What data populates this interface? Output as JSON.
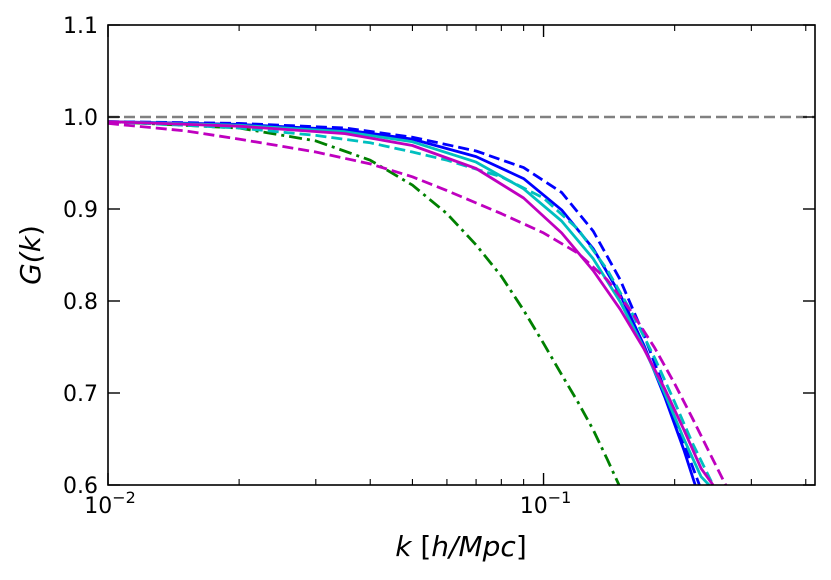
{
  "chart_data": {
    "type": "line",
    "title": "",
    "xlabel_parts": [
      "k",
      " [",
      "h/Mpc",
      "]"
    ],
    "ylabel_parts": [
      "G(",
      "k",
      ")"
    ],
    "xscale": "log",
    "xlim": [
      0.01,
      0.42
    ],
    "ylim": [
      0.6,
      1.1
    ],
    "grid": false,
    "legend": "none",
    "x_major_ticks": [
      {
        "value": 0.01,
        "label_base": "10",
        "label_exp": "−2"
      },
      {
        "value": 0.1,
        "label_base": "10",
        "label_exp": "−1"
      }
    ],
    "x_minor_ticks": [
      0.02,
      0.03,
      0.04,
      0.05,
      0.06,
      0.07,
      0.08,
      0.09,
      0.2,
      0.3,
      0.4
    ],
    "y_ticks": [
      {
        "value": 0.6,
        "label": "0.6"
      },
      {
        "value": 0.7,
        "label": "0.7"
      },
      {
        "value": 0.8,
        "label": "0.8"
      },
      {
        "value": 0.9,
        "label": "0.9"
      },
      {
        "value": 1.0,
        "label": "1.0"
      },
      {
        "value": 1.1,
        "label": "1.1"
      }
    ],
    "series": [
      {
        "color": "#808080",
        "style": "dashed",
        "x": [
          0.01,
          0.42
        ],
        "y": [
          1.0,
          1.0
        ]
      },
      {
        "color": "#008000",
        "style": "dashdot",
        "x": [
          0.01,
          0.02,
          0.03,
          0.04,
          0.05,
          0.06,
          0.07,
          0.08,
          0.09,
          0.1,
          0.11,
          0.12,
          0.13,
          0.14,
          0.149
        ],
        "y": [
          0.995,
          0.988,
          0.974,
          0.953,
          0.926,
          0.895,
          0.861,
          0.827,
          0.79,
          0.754,
          0.72,
          0.69,
          0.66,
          0.628,
          0.6
        ]
      },
      {
        "color": "#0000ff",
        "style": "solid",
        "x": [
          0.01,
          0.02,
          0.035,
          0.05,
          0.07,
          0.09,
          0.11,
          0.13,
          0.15,
          0.17,
          0.19,
          0.21,
          0.223
        ],
        "y": [
          0.995,
          0.992,
          0.986,
          0.976,
          0.957,
          0.933,
          0.899,
          0.857,
          0.807,
          0.752,
          0.695,
          0.638,
          0.6
        ]
      },
      {
        "color": "#0000ff",
        "style": "dashed",
        "x": [
          0.01,
          0.02,
          0.035,
          0.05,
          0.07,
          0.09,
          0.11,
          0.13,
          0.15,
          0.17,
          0.19,
          0.21,
          0.228
        ],
        "y": [
          0.995,
          0.993,
          0.988,
          0.978,
          0.963,
          0.945,
          0.918,
          0.876,
          0.823,
          0.763,
          0.703,
          0.645,
          0.6
        ]
      },
      {
        "color": "#00bfbf",
        "style": "solid",
        "x": [
          0.01,
          0.02,
          0.035,
          0.05,
          0.07,
          0.09,
          0.11,
          0.13,
          0.15,
          0.17,
          0.19,
          0.21,
          0.23,
          0.24
        ],
        "y": [
          0.995,
          0.991,
          0.984,
          0.973,
          0.951,
          0.922,
          0.887,
          0.846,
          0.799,
          0.749,
          0.699,
          0.65,
          0.609,
          0.6
        ]
      },
      {
        "color": "#00bfbf",
        "style": "dashed",
        "x": [
          0.01,
          0.02,
          0.03,
          0.04,
          0.05,
          0.06,
          0.08,
          0.1,
          0.12,
          0.14,
          0.16,
          0.18,
          0.2,
          0.22,
          0.245
        ],
        "y": [
          0.995,
          0.988,
          0.98,
          0.972,
          0.962,
          0.953,
          0.935,
          0.912,
          0.878,
          0.834,
          0.786,
          0.738,
          0.69,
          0.645,
          0.6
        ]
      },
      {
        "color": "#bf00bf",
        "style": "solid",
        "x": [
          0.01,
          0.02,
          0.035,
          0.05,
          0.07,
          0.09,
          0.11,
          0.13,
          0.15,
          0.17,
          0.19,
          0.21,
          0.23,
          0.245
        ],
        "y": [
          0.995,
          0.99,
          0.982,
          0.969,
          0.944,
          0.912,
          0.874,
          0.833,
          0.791,
          0.748,
          0.704,
          0.66,
          0.618,
          0.6
        ]
      },
      {
        "color": "#bf00bf",
        "style": "dashed",
        "x": [
          0.01,
          0.015,
          0.02,
          0.03,
          0.04,
          0.05,
          0.06,
          0.08,
          0.1,
          0.12,
          0.14,
          0.16,
          0.18,
          0.2,
          0.22,
          0.24,
          0.262
        ],
        "y": [
          0.993,
          0.985,
          0.976,
          0.962,
          0.949,
          0.935,
          0.92,
          0.895,
          0.874,
          0.852,
          0.823,
          0.787,
          0.749,
          0.71,
          0.672,
          0.636,
          0.6
        ]
      }
    ]
  }
}
